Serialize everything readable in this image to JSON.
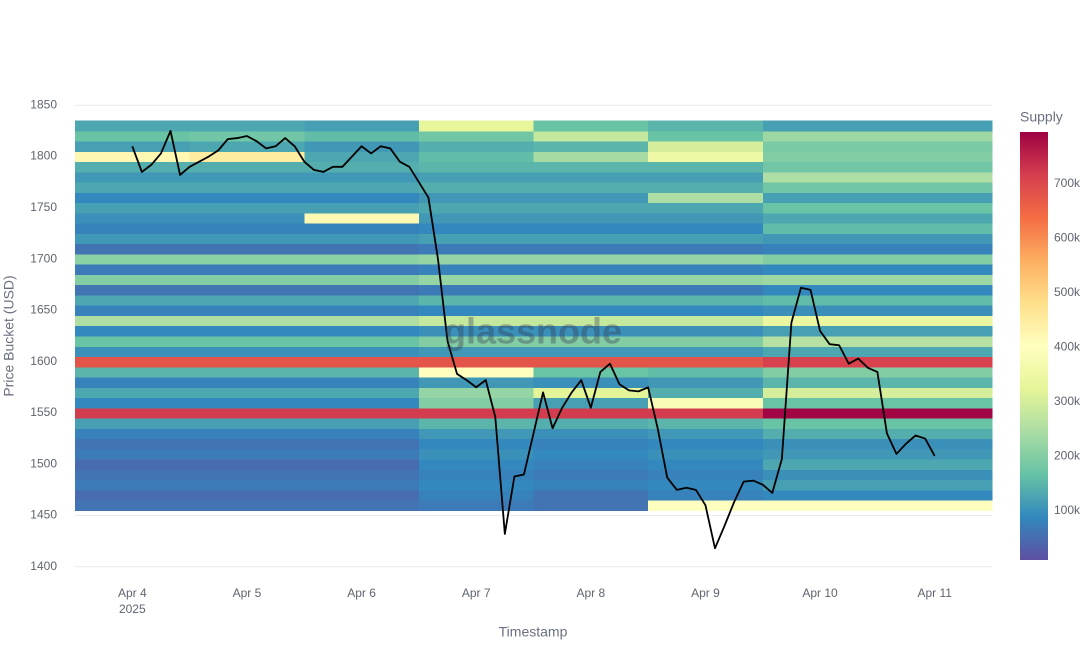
{
  "chart_data": {
    "type": "heatmap",
    "xlabel": "Timestamp",
    "ylabel": "Price Bucket (USD)",
    "watermark": "glassnode",
    "xlim": [
      "2025-04-03T12:00",
      "2025-04-11T12:00"
    ],
    "xticks": [
      {
        "value": "2025-04-04",
        "label": "Apr 4",
        "sublabel": "2025"
      },
      {
        "value": "2025-04-05",
        "label": "Apr 5"
      },
      {
        "value": "2025-04-06",
        "label": "Apr 6"
      },
      {
        "value": "2025-04-07",
        "label": "Apr 7"
      },
      {
        "value": "2025-04-08",
        "label": "Apr 8"
      },
      {
        "value": "2025-04-09",
        "label": "Apr 9"
      },
      {
        "value": "2025-04-10",
        "label": "Apr 10"
      },
      {
        "value": "2025-04-11",
        "label": "Apr 11"
      }
    ],
    "ylim": [
      1390,
      1860
    ],
    "yticks": [
      1400,
      1450,
      1500,
      1550,
      1600,
      1650,
      1700,
      1750,
      1800,
      1850
    ],
    "grid": true,
    "x": [
      "2025-04-04",
      "2025-04-05",
      "2025-04-06",
      "2025-04-07",
      "2025-04-08",
      "2025-04-09",
      "2025-04-10",
      "2025-04-11"
    ],
    "y": [
      1460,
      1470,
      1480,
      1490,
      1500,
      1510,
      1520,
      1530,
      1540,
      1550,
      1560,
      1570,
      1580,
      1590,
      1600,
      1610,
      1620,
      1630,
      1640,
      1650,
      1660,
      1670,
      1680,
      1690,
      1700,
      1710,
      1720,
      1730,
      1740,
      1750,
      1760,
      1770,
      1780,
      1790,
      1800,
      1810,
      1820,
      1830
    ],
    "z": [
      [
        60000,
        60000,
        60000,
        70000,
        60000,
        400000,
        400000,
        400000
      ],
      [
        50000,
        50000,
        50000,
        80000,
        60000,
        80000,
        90000,
        90000
      ],
      [
        70000,
        70000,
        70000,
        90000,
        80000,
        90000,
        120000,
        120000
      ],
      [
        60000,
        60000,
        60000,
        80000,
        70000,
        80000,
        100000,
        100000
      ],
      [
        50000,
        50000,
        50000,
        90000,
        80000,
        90000,
        130000,
        130000
      ],
      [
        70000,
        70000,
        70000,
        100000,
        90000,
        100000,
        110000,
        110000
      ],
      [
        60000,
        60000,
        60000,
        90000,
        80000,
        90000,
        100000,
        100000
      ],
      [
        80000,
        80000,
        80000,
        110000,
        100000,
        110000,
        140000,
        140000
      ],
      [
        120000,
        120000,
        120000,
        150000,
        140000,
        150000,
        170000,
        170000
      ],
      [
        720000,
        720000,
        720000,
        720000,
        720000,
        720000,
        790000,
        790000
      ],
      [
        90000,
        90000,
        90000,
        200000,
        120000,
        380000,
        170000,
        170000
      ],
      [
        130000,
        130000,
        130000,
        220000,
        320000,
        140000,
        300000,
        300000
      ],
      [
        80000,
        80000,
        80000,
        110000,
        100000,
        110000,
        150000,
        150000
      ],
      [
        150000,
        150000,
        150000,
        400000,
        170000,
        160000,
        200000,
        200000
      ],
      [
        680000,
        680000,
        680000,
        680000,
        680000,
        680000,
        710000,
        710000
      ],
      [
        100000,
        100000,
        100000,
        110000,
        110000,
        110000,
        130000,
        130000
      ],
      [
        170000,
        170000,
        170000,
        200000,
        200000,
        200000,
        260000,
        260000
      ],
      [
        90000,
        90000,
        90000,
        100000,
        100000,
        100000,
        120000,
        120000
      ],
      [
        250000,
        250000,
        250000,
        280000,
        280000,
        280000,
        340000,
        340000
      ],
      [
        80000,
        80000,
        80000,
        90000,
        90000,
        90000,
        100000,
        100000
      ],
      [
        130000,
        130000,
        130000,
        150000,
        150000,
        150000,
        160000,
        160000
      ],
      [
        60000,
        60000,
        60000,
        70000,
        70000,
        70000,
        90000,
        90000
      ],
      [
        200000,
        200000,
        200000,
        220000,
        220000,
        220000,
        230000,
        230000
      ],
      [
        70000,
        70000,
        70000,
        80000,
        80000,
        80000,
        90000,
        90000
      ],
      [
        210000,
        210000,
        210000,
        220000,
        220000,
        220000,
        200000,
        200000
      ],
      [
        60000,
        60000,
        60000,
        70000,
        70000,
        70000,
        80000,
        80000
      ],
      [
        110000,
        110000,
        110000,
        120000,
        120000,
        120000,
        110000,
        110000
      ],
      [
        80000,
        80000,
        80000,
        90000,
        90000,
        90000,
        160000,
        160000
      ],
      [
        100000,
        100000,
        420000,
        110000,
        110000,
        110000,
        130000,
        130000
      ],
      [
        120000,
        120000,
        120000,
        130000,
        130000,
        130000,
        170000,
        170000
      ],
      [
        90000,
        90000,
        90000,
        110000,
        110000,
        250000,
        120000,
        120000
      ],
      [
        130000,
        130000,
        130000,
        140000,
        140000,
        140000,
        180000,
        180000
      ],
      [
        110000,
        110000,
        110000,
        120000,
        120000,
        120000,
        250000,
        250000
      ],
      [
        140000,
        140000,
        140000,
        150000,
        150000,
        150000,
        180000,
        180000
      ],
      [
        420000,
        450000,
        130000,
        160000,
        240000,
        350000,
        200000,
        200000
      ],
      [
        120000,
        130000,
        110000,
        140000,
        150000,
        300000,
        190000,
        190000
      ],
      [
        170000,
        180000,
        160000,
        180000,
        280000,
        170000,
        230000,
        230000
      ],
      [
        130000,
        130000,
        120000,
        330000,
        170000,
        150000,
        120000,
        120000
      ]
    ],
    "zlim": [
      10000,
      795000
    ],
    "colorscale": [
      [
        0,
        "#5e4fa2"
      ],
      [
        0.1,
        "#3288bd"
      ],
      [
        0.2,
        "#66c2a5"
      ],
      [
        0.3,
        "#abdda4"
      ],
      [
        0.4,
        "#e6f598"
      ],
      [
        0.5,
        "#ffffbf"
      ],
      [
        0.6,
        "#fee08b"
      ],
      [
        0.7,
        "#fdae61"
      ],
      [
        0.8,
        "#f46d43"
      ],
      [
        0.9,
        "#d53e4f"
      ],
      [
        1,
        "#9e0142"
      ]
    ],
    "colorbar": {
      "title": "Supply",
      "ticks": [
        {
          "value": 100000,
          "label": "100k"
        },
        {
          "value": 200000,
          "label": "200k"
        },
        {
          "value": 300000,
          "label": "300k"
        },
        {
          "value": 400000,
          "label": "400k"
        },
        {
          "value": 500000,
          "label": "500k"
        },
        {
          "value": 600000,
          "label": "600k"
        },
        {
          "value": 700000,
          "label": "700k"
        }
      ]
    },
    "line": {
      "color": "#000000",
      "x": [
        "2025-04-04T00:00",
        "2025-04-04T02:00",
        "2025-04-04T04:00",
        "2025-04-04T06:00",
        "2025-04-04T08:00",
        "2025-04-04T10:00",
        "2025-04-04T12:00",
        "2025-04-04T14:00",
        "2025-04-04T16:00",
        "2025-04-04T18:00",
        "2025-04-04T20:00",
        "2025-04-04T22:00",
        "2025-04-05T00:00",
        "2025-04-05T02:00",
        "2025-04-05T04:00",
        "2025-04-05T06:00",
        "2025-04-05T08:00",
        "2025-04-05T10:00",
        "2025-04-05T12:00",
        "2025-04-05T14:00",
        "2025-04-05T16:00",
        "2025-04-05T18:00",
        "2025-04-05T20:00",
        "2025-04-05T22:00",
        "2025-04-06T00:00",
        "2025-04-06T02:00",
        "2025-04-06T04:00",
        "2025-04-06T06:00",
        "2025-04-06T08:00",
        "2025-04-06T10:00",
        "2025-04-06T12:00",
        "2025-04-06T14:00",
        "2025-04-06T16:00",
        "2025-04-06T18:00",
        "2025-04-06T20:00",
        "2025-04-06T22:00",
        "2025-04-07T00:00",
        "2025-04-07T02:00",
        "2025-04-07T04:00",
        "2025-04-07T06:00",
        "2025-04-07T08:00",
        "2025-04-07T10:00",
        "2025-04-07T12:00",
        "2025-04-07T14:00",
        "2025-04-07T16:00",
        "2025-04-07T18:00",
        "2025-04-07T20:00",
        "2025-04-07T22:00",
        "2025-04-08T00:00",
        "2025-04-08T02:00",
        "2025-04-08T04:00",
        "2025-04-08T06:00",
        "2025-04-08T08:00",
        "2025-04-08T10:00",
        "2025-04-08T12:00",
        "2025-04-08T14:00",
        "2025-04-08T16:00",
        "2025-04-08T18:00",
        "2025-04-08T20:00",
        "2025-04-08T22:00",
        "2025-04-09T00:00",
        "2025-04-09T02:00",
        "2025-04-09T04:00",
        "2025-04-09T06:00",
        "2025-04-09T08:00",
        "2025-04-09T10:00",
        "2025-04-09T12:00",
        "2025-04-09T14:00",
        "2025-04-09T16:00",
        "2025-04-09T18:00",
        "2025-04-09T20:00",
        "2025-04-09T22:00",
        "2025-04-10T00:00",
        "2025-04-10T02:00",
        "2025-04-10T04:00",
        "2025-04-10T06:00",
        "2025-04-10T08:00",
        "2025-04-10T10:00",
        "2025-04-10T12:00",
        "2025-04-10T14:00",
        "2025-04-10T16:00",
        "2025-04-10T18:00",
        "2025-04-10T20:00",
        "2025-04-10T22:00",
        "2025-04-11T00:00"
      ],
      "values": [
        1810,
        1785,
        1792,
        1803,
        1825,
        1782,
        1790,
        1795,
        1800,
        1806,
        1817,
        1818,
        1820,
        1815,
        1808,
        1810,
        1818,
        1810,
        1795,
        1787,
        1785,
        1790,
        1790,
        1800,
        1810,
        1803,
        1810,
        1808,
        1795,
        1790,
        1775,
        1760,
        1700,
        1620,
        1588,
        1582,
        1575,
        1582,
        1546,
        1432,
        1488,
        1490,
        1530,
        1570,
        1535,
        1555,
        1570,
        1582,
        1555,
        1590,
        1598,
        1578,
        1572,
        1571,
        1575,
        1535,
        1487,
        1475,
        1477,
        1475,
        1460,
        1418,
        1440,
        1463,
        1483,
        1484,
        1480,
        1472,
        1505,
        1638,
        1672,
        1670,
        1630,
        1617,
        1616,
        1598,
        1603,
        1594,
        1590,
        1530,
        1510,
        1520,
        1528,
        1525,
        1508
      ]
    }
  }
}
